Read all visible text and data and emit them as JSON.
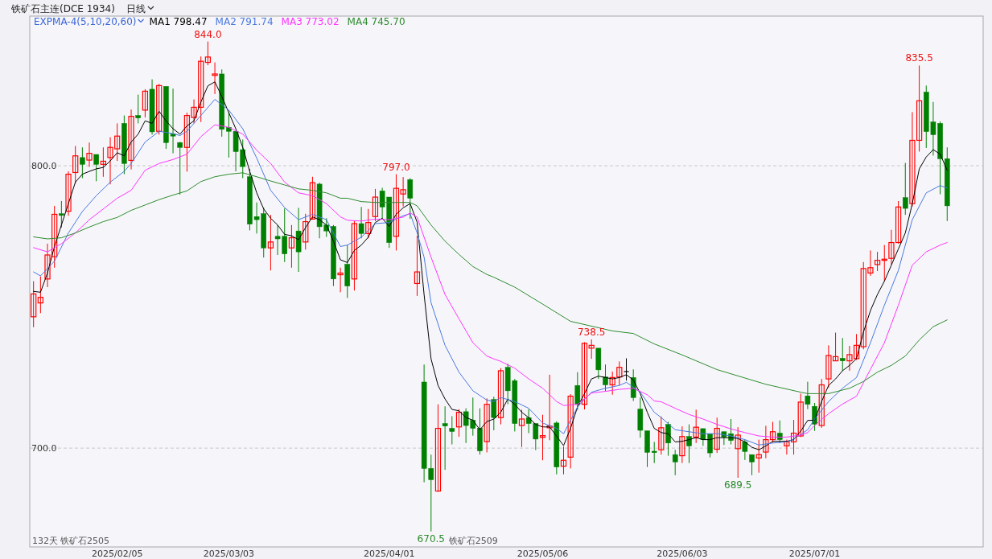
{
  "chart_data": {
    "type": "candlestick",
    "title": "铁矿石主连(DCE 1934)",
    "subtitle": "日线",
    "legend_title": "EXPMA-4(5,10,20,60)",
    "legend": "top left",
    "grid": "y",
    "ylim": [
      665,
      853
    ],
    "yticks": [
      {
        "value": 700,
        "label": "700.0"
      },
      {
        "value": 800,
        "label": "800.0"
      }
    ],
    "categories": [
      null,
      null,
      null,
      null,
      null,
      null,
      null,
      null,
      null,
      null,
      null,
      null,
      "2025/02/05",
      null,
      null,
      null,
      null,
      null,
      null,
      null,
      null,
      null,
      null,
      null,
      null,
      null,
      null,
      null,
      "2025/03/03",
      null,
      null,
      null,
      null,
      null,
      null,
      null,
      null,
      null,
      null,
      null,
      null,
      null,
      null,
      null,
      null,
      null,
      null,
      null,
      null,
      null,
      null,
      "2025/04/01",
      null,
      null,
      null,
      null,
      null,
      null,
      null,
      null,
      null,
      null,
      null,
      null,
      null,
      null,
      null,
      null,
      null,
      null,
      null,
      null,
      null,
      "2025/05/06",
      null,
      null,
      null,
      null,
      null,
      null,
      null,
      null,
      null,
      null,
      null,
      null,
      null,
      null,
      null,
      null,
      null,
      null,
      null,
      "2025/06/03",
      null,
      null,
      null,
      null,
      null,
      null,
      null,
      null,
      null,
      null,
      null,
      null,
      null,
      null,
      null,
      null,
      null,
      null,
      "2025/07/01",
      null,
      null,
      null,
      null,
      null,
      null,
      null,
      null,
      null,
      null,
      null,
      null,
      null,
      null,
      null,
      null,
      null,
      null,
      null
    ],
    "ohlc": [
      [
        746.5,
        759.1,
        742.8,
        754.6
      ],
      [
        751.4,
        760.8,
        747.8,
        753.4
      ],
      [
        759.9,
        772.4,
        757.0,
        768.4
      ],
      [
        767.8,
        785.8,
        763.9,
        782.8
      ],
      [
        783.0,
        787.5,
        778.1,
        782.4
      ],
      [
        783.9,
        798.0,
        782.3,
        797.0
      ],
      [
        797.6,
        807.0,
        793.7,
        803.5
      ],
      [
        802.9,
        806.5,
        795.6,
        800.5
      ],
      [
        802.0,
        808.2,
        799.6,
        804.4
      ],
      [
        804.0,
        804.0,
        794.5,
        800.5
      ],
      [
        800.5,
        806.5,
        796.1,
        801.6
      ],
      [
        802.9,
        810.1,
        793.4,
        806.5
      ],
      [
        806.0,
        815.0,
        801.7,
        810.5
      ],
      [
        815.0,
        817.8,
        797.0,
        800.8
      ],
      [
        801.9,
        819.9,
        798.7,
        817.5
      ],
      [
        817.8,
        825.2,
        815.0,
        816.9
      ],
      [
        819.7,
        827.1,
        817.1,
        826.4
      ],
      [
        827.1,
        830.6,
        811.0,
        812.0
      ],
      [
        812.2,
        829.0,
        811.0,
        828.4
      ],
      [
        828.1,
        828.1,
        806.0,
        808.2
      ],
      [
        811.2,
        827.3,
        804.4,
        810.5
      ],
      [
        808.2,
        808.5,
        789.8,
        806.5
      ],
      [
        806.5,
        818.8,
        797.9,
        817.8
      ],
      [
        817.1,
        823.5,
        815.0,
        820.7
      ],
      [
        820.7,
        838.7,
        815.5,
        837.0
      ],
      [
        836.6,
        844.0,
        835.6,
        838.5
      ],
      [
        832.0,
        836.6,
        825.4,
        832.5
      ],
      [
        832.5,
        834.1,
        810.3,
        812.9
      ],
      [
        813.6,
        819.0,
        802.9,
        812.2
      ],
      [
        812.2,
        812.2,
        798.0,
        805.0
      ],
      [
        805.7,
        809.3,
        795.6,
        799.7
      ],
      [
        796.1,
        798.9,
        777.1,
        779.3
      ],
      [
        782.0,
        787.0,
        776.0,
        780.9
      ],
      [
        783.0,
        785.2,
        767.5,
        770.9
      ],
      [
        770.9,
        782.6,
        762.9,
        773.0
      ],
      [
        775.0,
        779.0,
        768.4,
        774.1
      ],
      [
        775.0,
        784.9,
        765.9,
        768.8
      ],
      [
        770.9,
        779.0,
        763.9,
        774.5
      ],
      [
        776.9,
        785.1,
        762.4,
        769.5
      ],
      [
        773.0,
        783.0,
        770.3,
        780.2
      ],
      [
        781.1,
        796.1,
        780.9,
        794.0
      ],
      [
        793.5,
        794.0,
        774.3,
        778.4
      ],
      [
        779.0,
        781.4,
        774.8,
        776.9
      ],
      [
        778.5,
        779.0,
        757.4,
        759.9
      ],
      [
        761.4,
        763.9,
        755.2,
        762.0
      ],
      [
        765.1,
        771.9,
        753.2,
        757.4
      ],
      [
        759.9,
        780.4,
        755.8,
        779.5
      ],
      [
        779.5,
        785.4,
        774.3,
        776.0
      ],
      [
        776.0,
        784.7,
        774.3,
        779.9
      ],
      [
        782.0,
        791.8,
        780.4,
        788.9
      ],
      [
        791.1,
        792.2,
        781.1,
        785.4
      ],
      [
        788.9,
        788.9,
        770.9,
        772.8
      ],
      [
        775.0,
        797.0,
        770.0,
        792.0
      ],
      [
        790.0,
        796.0,
        785.6,
        791.5
      ],
      [
        795.1,
        795.6,
        781.2,
        788.5
      ],
      [
        758.3,
        775.2,
        753.9,
        762.4
      ],
      [
        723.4,
        729.6,
        687.9,
        692.8
      ],
      [
        692.8,
        697.7,
        670.5,
        688.8
      ],
      [
        684.8,
        715.5,
        684.5,
        707.0
      ],
      [
        708.7,
        714.8,
        692.3,
        707.8
      ],
      [
        707.0,
        711.3,
        701.3,
        705.9
      ],
      [
        707.5,
        713.8,
        704.0,
        712.7
      ],
      [
        712.9,
        714.1,
        701.8,
        708.0
      ],
      [
        709.9,
        717.9,
        704.4,
        707.0
      ],
      [
        707.0,
        714.1,
        697.7,
        699.0
      ],
      [
        702.3,
        717.6,
        698.5,
        715.5
      ],
      [
        717.2,
        718.2,
        706.3,
        710.8
      ],
      [
        710.8,
        728.3,
        708.4,
        727.4
      ],
      [
        728.6,
        729.9,
        715.5,
        720.3
      ],
      [
        723.9,
        724.5,
        705.9,
        708.7
      ],
      [
        708.0,
        713.6,
        700.4,
        710.3
      ],
      [
        710.8,
        713.8,
        705.3,
        708.7
      ],
      [
        708.7,
        708.7,
        699.3,
        703.2
      ],
      [
        703.8,
        711.8,
        695.7,
        704.4
      ],
      [
        707.2,
        726.0,
        702.8,
        707.8
      ],
      [
        708.9,
        709.5,
        690.7,
        693.3
      ],
      [
        693.6,
        700.6,
        690.7,
        695.7
      ],
      [
        696.8,
        719.1,
        692.8,
        718.4
      ],
      [
        722.2,
        726.9,
        713.5,
        715.5
      ],
      [
        715.5,
        737.5,
        713.7,
        737.1
      ],
      [
        735.4,
        738.5,
        731.6,
        736.4
      ],
      [
        735.4,
        735.4,
        724.5,
        727.7
      ],
      [
        725.2,
        729.6,
        720.1,
        722.4
      ],
      [
        722.4,
        727.1,
        718.9,
        725.0
      ],
      [
        725.2,
        730.7,
        722.2,
        728.6
      ],
      [
        727.1,
        731.8,
        723.9,
        727.1
      ],
      [
        725.0,
        727.9,
        716.7,
        717.9
      ],
      [
        713.8,
        717.9,
        703.7,
        706.3
      ],
      [
        706.1,
        706.1,
        693.3,
        698.5
      ],
      [
        698.9,
        702.2,
        694.7,
        698.4
      ],
      [
        699.4,
        711.2,
        697.7,
        707.2
      ],
      [
        708.4,
        709.3,
        697.3,
        701.8
      ],
      [
        697.7,
        699.4,
        690.4,
        695.1
      ],
      [
        697.3,
        707.7,
        694.7,
        704.1
      ],
      [
        704.1,
        708.4,
        694.7,
        700.8
      ],
      [
        703.9,
        713.6,
        701.8,
        707.4
      ],
      [
        706.9,
        706.9,
        700.8,
        703.0
      ],
      [
        705.1,
        705.1,
        696.7,
        698.3
      ],
      [
        699.6,
        710.8,
        698.3,
        707.0
      ],
      [
        705.8,
        705.8,
        701.1,
        703.9
      ],
      [
        705.1,
        710.3,
        701.3,
        702.7
      ],
      [
        699.8,
        707.4,
        689.5,
        704.6
      ],
      [
        702.2,
        703.0,
        695.8,
        698.8
      ],
      [
        697.7,
        697.7,
        690.4,
        695.1
      ],
      [
        696.5,
        703.0,
        691.3,
        697.7
      ],
      [
        698.6,
        707.9,
        696.4,
        703.0
      ],
      [
        703.0,
        709.3,
        702.0,
        705.8
      ],
      [
        705.3,
        709.8,
        701.8,
        703.0
      ],
      [
        700.8,
        703.0,
        697.7,
        702.2
      ],
      [
        702.2,
        710.0,
        697.7,
        705.3
      ],
      [
        704.3,
        719.3,
        703.9,
        716.3
      ],
      [
        718.5,
        723.5,
        713.8,
        715.5
      ],
      [
        714.8,
        716.0,
        706.1,
        708.5
      ],
      [
        708.0,
        724.5,
        707.2,
        722.4
      ],
      [
        724.5,
        736.4,
        721.4,
        732.8
      ],
      [
        730.9,
        740.9,
        730.9,
        732.4
      ],
      [
        731.8,
        739.0,
        727.4,
        730.9
      ],
      [
        730.9,
        736.2,
        727.4,
        733.1
      ],
      [
        731.7,
        740.4,
        731.2,
        736.4
      ],
      [
        735.9,
        765.9,
        735.0,
        763.6
      ],
      [
        762.0,
        770.0,
        761.0,
        763.9
      ],
      [
        765.0,
        769.5,
        762.7,
        766.5
      ],
      [
        766.5,
        771.9,
        759.1,
        766.9
      ],
      [
        767.2,
        777.3,
        765.0,
        772.8
      ],
      [
        772.8,
        787.5,
        772.4,
        785.4
      ],
      [
        788.7,
        801.0,
        782.6,
        784.9
      ],
      [
        786.6,
        819.0,
        785.6,
        809.0
      ],
      [
        809.0,
        835.5,
        805.0,
        823.0
      ],
      [
        826.1,
        828.4,
        806.3,
        812.1
      ],
      [
        815.5,
        822.6,
        803.6,
        811.0
      ],
      [
        815.0,
        815.7,
        789.9,
        802.5
      ],
      [
        802.5,
        806.5,
        780.4,
        785.8
      ]
    ],
    "colors": [
      "#ff0000",
      "#ff0000",
      "#ff0000",
      "#ff0000",
      "#008000",
      "#ff0000",
      "#ff0000",
      "#008000",
      "#ff0000",
      "#008000",
      "#ff0000",
      "#ff0000",
      "#ff0000",
      "#008000",
      "#ff0000",
      "#008000",
      "#ff0000",
      "#008000",
      "#ff0000",
      "#008000",
      "#008000",
      "#008000",
      "#ff0000",
      "#ff0000",
      "#ff0000",
      "#ff0000",
      "#ff0000",
      "#008000",
      "#008000",
      "#008000",
      "#008000",
      "#008000",
      "#008000",
      "#008000",
      "#ff0000",
      "#008000",
      "#008000",
      "#ff0000",
      "#008000",
      "#ff0000",
      "#ff0000",
      "#008000",
      "#008000",
      "#008000",
      "#ff0000",
      "#008000",
      "#ff0000",
      "#008000",
      "#ff0000",
      "#ff0000",
      "#008000",
      "#008000",
      "#ff0000",
      "#ff0000",
      "#008000",
      "#ff0000",
      "#008000",
      "#008000",
      "#ff0000",
      "#008000",
      "#008000",
      "#ff0000",
      "#008000",
      "#008000",
      "#008000",
      "#ff0000",
      "#008000",
      "#ff0000",
      "#008000",
      "#008000",
      "#ff0000",
      "#008000",
      "#008000",
      "#ff0000",
      "#ff0000",
      "#008000",
      "#ff0000",
      "#ff0000",
      "#008000",
      "#ff0000",
      "#ff0000",
      "#008000",
      "#008000",
      "#ff0000",
      "#ff0000",
      "#000000",
      "#008000",
      "#008000",
      "#008000",
      "#008000",
      "#ff0000",
      "#008000",
      "#008000",
      "#ff0000",
      "#008000",
      "#ff0000",
      "#008000",
      "#008000",
      "#ff0000",
      "#008000",
      "#008000",
      "#ff0000",
      "#008000",
      "#008000",
      "#ff0000",
      "#ff0000",
      "#ff0000",
      "#008000",
      "#ff0000",
      "#ff0000",
      "#ff0000",
      "#008000",
      "#008000",
      "#ff0000",
      "#ff0000",
      "#ff0000",
      "#008000",
      "#ff0000",
      "#ff0000",
      "#ff0000",
      "#ff0000",
      "#ff0000",
      "#ff0000",
      "#ff0000",
      "#ff0000",
      "#008000",
      "#ff0000",
      "#ff0000",
      "#008000",
      "#008000",
      "#008000",
      "#008000"
    ],
    "series": [
      {
        "name": "MA1 798.47",
        "color": "#000000",
        "type": "line",
        "values": [
          755.5,
          755.2,
          762.0,
          771.4,
          779.0,
          786.6,
          794.2,
          797.0,
          798.0,
          798.9,
          799.4,
          801.7,
          804.6,
          803.5,
          808.4,
          811.2,
          815.9,
          815.0,
          819.3,
          815.9,
          813.1,
          811.2,
          814.1,
          815.9,
          822.6,
          828.3,
          829.7,
          824.5,
          818.8,
          813.1,
          806.5,
          798.0,
          790.4,
          784.7,
          781.4,
          779.0,
          775.7,
          775.2,
          773.8,
          778.1,
          781.9,
          780.9,
          779.0,
          773.3,
          766.7,
          765.7,
          770.0,
          771.9,
          774.7,
          779.9,
          781.4,
          778.5,
          782.8,
          785.1,
          786.6,
          780.0,
          754.4,
          731.6,
          722.2,
          717.4,
          713.7,
          713.2,
          710.8,
          709.9,
          706.5,
          709.4,
          710.3,
          712.7,
          717.4,
          715.5,
          712.7,
          710.8,
          708.4,
          707.5,
          707.5,
          704.2,
          700.9,
          707.0,
          714.6,
          719.3,
          724.5,
          725.5,
          725.0,
          724.5,
          725.0,
          726.0,
          724.1,
          719.3,
          712.7,
          707.0,
          705.5,
          705.1,
          702.2,
          702.4,
          703.0,
          703.7,
          703.0,
          703.0,
          703.7,
          703.7,
          703.7,
          703.4,
          702.2,
          700.3,
          699.4,
          700.8,
          702.4,
          702.4,
          702.4,
          703.0,
          706.0,
          709.8,
          709.9,
          716.5,
          722.2,
          724.5,
          727.4,
          729.3,
          731.7,
          741.1,
          748.7,
          754.4,
          759.1,
          764.8,
          770.5,
          776.2,
          786.6,
          798.9,
          803.1,
          805.7,
          804.1,
          798.4
        ]
      },
      {
        "name": "MA2 791.74",
        "color": "#4a78e0",
        "type": "line",
        "values": [
          762.4,
          761.0,
          null,
          766.2,
          null,
          776.2,
          null,
          783.8,
          null,
          789.4,
          null,
          794.2,
          null,
          798.0,
          800.8,
          null,
          808.4,
          null,
          812.2,
          null,
          811.4,
          810.7,
          812.2,
          null,
          817.8,
          null,
          823.5,
          null,
          819.7,
          null,
          813.1,
          null,
          802.7,
          null,
          791.3,
          null,
          785.2,
          null,
          780.9,
          null,
          782.8,
          null,
          780.9,
          null,
          771.4,
          771.9,
          null,
          774.7,
          null,
          779.5,
          null,
          779.9,
          null,
          782.3,
          783.0,
          776.2,
          767.6,
          751.5,
          null,
          736.4,
          null,
          726.9,
          null,
          720.3,
          null,
          717.0,
          716.5,
          717.9,
          null,
          716.5,
          null,
          714.1,
          null,
          708.9,
          null,
          707.0,
          705.1,
          null,
          714.6,
          null,
          719.8,
          null,
          721.2,
          null,
          722.2,
          723.3,
          null,
          719.8,
          null,
          712.7,
          710.8,
          null,
          706.5,
          null,
          705.8,
          null,
          705.1,
          null,
          705.1,
          null,
          704.3,
          null,
          703.0,
          null,
          701.1,
          null,
          701.8,
          null,
          702.2,
          703.2,
          null,
          706.5,
          710.3,
          null,
          716.5,
          null,
          721.2,
          null,
          725.0,
          null,
          737.3,
          null,
          750.6,
          null,
          762.9,
          null,
          780.9,
          null,
          790.4,
          null,
          793.0,
          792.1
        ]
      },
      {
        "name": "MA3 773.02",
        "color": "#ff33ff",
        "type": "line",
        "values": [
          771.0,
          null,
          769.5,
          null,
          772.4,
          null,
          776.2,
          null,
          780.9,
          null,
          784.7,
          null,
          788.5,
          null,
          791.3,
          null,
          798.4,
          null,
          800.8,
          null,
          802.2,
          null,
          804.1,
          null,
          810.3,
          null,
          814.5,
          null,
          813.6,
          null,
          811.2,
          null,
          805.5,
          null,
          800.8,
          null,
          794.2,
          null,
          790.4,
          null,
          789.4,
          null,
          786.6,
          null,
          781.9,
          780.7,
          null,
          780.4,
          null,
          781.1,
          null,
          780.9,
          null,
          781.8,
          783.3,
          781.8,
          null,
          767.6,
          null,
          754.4,
          null,
          745.8,
          null,
          737.3,
          null,
          732.6,
          731.6,
          730.7,
          null,
          728.3,
          null,
          724.5,
          null,
          721.2,
          null,
          716.5,
          715.1,
          null,
          715.5,
          null,
          719.5,
          null,
          720.1,
          null,
          720.8,
          null,
          721.2,
          null,
          718.9,
          716.7,
          716.4,
          null,
          714.1,
          null,
          711.9,
          null,
          710.3,
          null,
          708.4,
          null,
          706.8,
          null,
          705.5,
          null,
          704.3,
          null,
          703.9,
          null,
          703.9,
          null,
          704.6,
          705.5,
          708.0,
          null,
          712.2,
          null,
          715.6,
          null,
          718.4,
          null,
          727.9,
          null,
          737.3,
          null,
          750.6,
          null,
          764.8,
          null,
          769.5,
          null,
          771.9,
          772.8
        ]
      },
      {
        "name": "MA4 745.70",
        "color": "#2e8b2e",
        "type": "line",
        "values": [
          774.8,
          null,
          774.1,
          null,
          774.5,
          null,
          776.2,
          null,
          778.3,
          null,
          780.2,
          null,
          781.7,
          null,
          784.2,
          null,
          786.1,
          null,
          788.0,
          null,
          789.6,
          null,
          791.1,
          null,
          794.4,
          null,
          796.1,
          null,
          797.0,
          null,
          797.5,
          null,
          796.1,
          null,
          794.6,
          null,
          793.2,
          null,
          791.8,
          null,
          791.3,
          null,
          790.4,
          null,
          788.5,
          788.5,
          null,
          787.3,
          null,
          787.0,
          null,
          787.0,
          null,
          787.0,
          787.0,
          785.8,
          null,
          779.0,
          null,
          773.3,
          null,
          768.6,
          null,
          764.3,
          null,
          761.5,
          760.5,
          null,
          null,
          757.0,
          null,
          null,
          null,
          751.0,
          null,
          null,
          null,
          744.9,
          null,
          null,
          null,
          null,
          null,
          741.5,
          null,
          null,
          740.6,
          null,
          null,
          736.9,
          null,
          null,
          null,
          733.0,
          null,
          null,
          null,
          null,
          727.8,
          null,
          null,
          null,
          null,
          null,
          null,
          722.6,
          null,
          null,
          null,
          null,
          719.8,
          719.3,
          null,
          null,
          719.3,
          null,
          null,
          721.2,
          null,
          723.6,
          null,
          726.9,
          null,
          729.3,
          null,
          732.6,
          null,
          738.3,
          null,
          743.0,
          null,
          745.4
        ]
      }
    ],
    "annotations": [
      {
        "text": "844.0",
        "y": 844.0
      },
      {
        "text": "797.0",
        "y": 797.0
      },
      {
        "text": "738.5",
        "y": 738.5
      },
      {
        "text": "689.5",
        "y": 689.5
      },
      {
        "text": "835.5",
        "y": 835.5
      },
      {
        "text": "670.5",
        "y": 670.5
      },
      "132天",
      "铁矿石2505",
      "铁矿石2509"
    ]
  }
}
